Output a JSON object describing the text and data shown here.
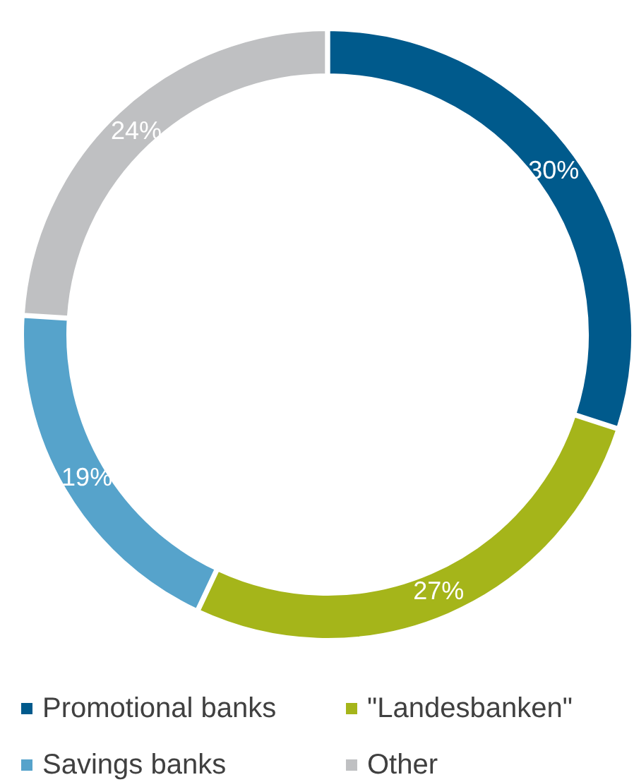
{
  "chart_data": {
    "type": "donut",
    "categories": [
      "Promotional banks",
      "\"Landesbanken\"",
      "Savings banks",
      "Other"
    ],
    "values": [
      30,
      27,
      19,
      24
    ],
    "colors": [
      "#005a8c",
      "#a5b51a",
      "#56a3cb",
      "#bfc0c2"
    ],
    "value_labels": [
      "30%",
      "27%",
      "19%",
      "24%"
    ],
    "legend": "bottom"
  }
}
